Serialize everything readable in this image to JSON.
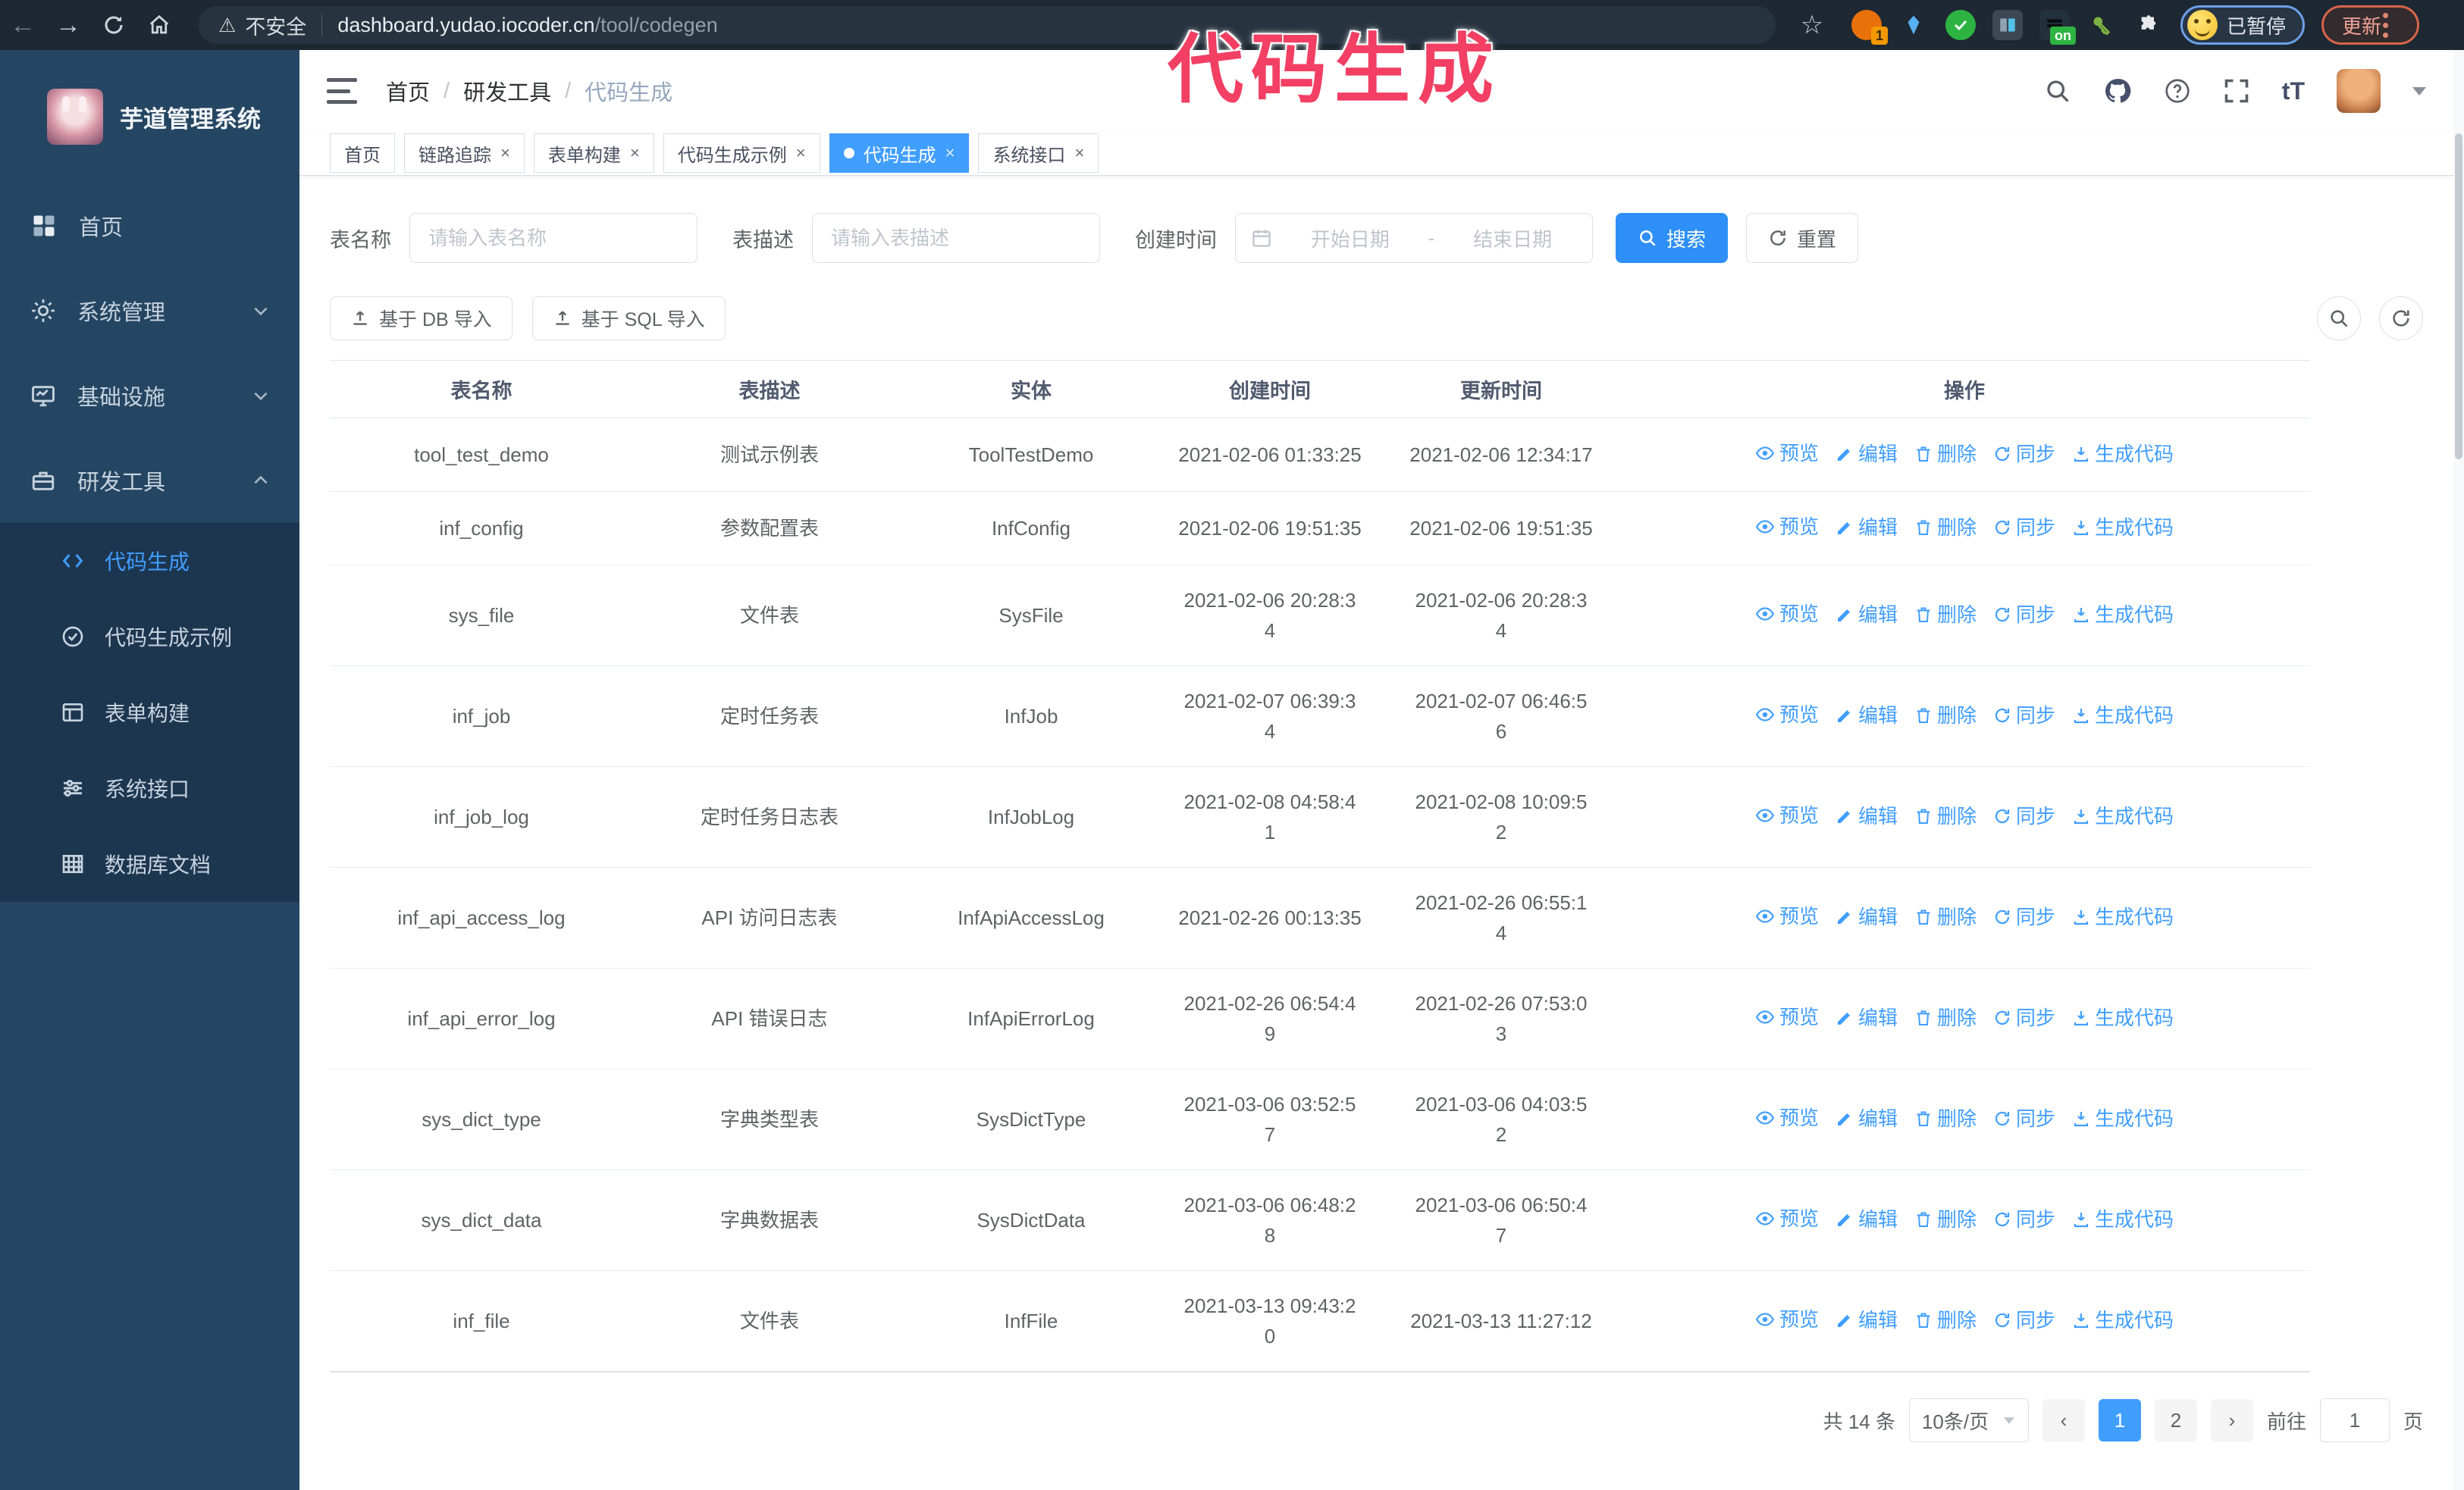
{
  "browser": {
    "security_label": "不安全",
    "url_host": "dashboard.yudao.iocoder.cn",
    "url_path": "/tool/codegen",
    "extension_badge": "1",
    "extension_on_badge": "on",
    "profile_status": "已暂停",
    "update_label": "更新"
  },
  "overlay": {
    "text": "代码生成"
  },
  "sidebar": {
    "title": "芋道管理系统",
    "items": [
      {
        "label": "首页"
      },
      {
        "label": "系统管理"
      },
      {
        "label": "基础设施"
      },
      {
        "label": "研发工具"
      }
    ],
    "sub_items": [
      {
        "label": "代码生成"
      },
      {
        "label": "代码生成示例"
      },
      {
        "label": "表单构建"
      },
      {
        "label": "系统接口"
      },
      {
        "label": "数据库文档"
      }
    ]
  },
  "header": {
    "breadcrumb": [
      "首页",
      "研发工具",
      "代码生成"
    ]
  },
  "tabs": [
    {
      "label": "首页"
    },
    {
      "label": "链路追踪"
    },
    {
      "label": "表单构建"
    },
    {
      "label": "代码生成示例"
    },
    {
      "label": "代码生成"
    },
    {
      "label": "系统接口"
    }
  ],
  "filters": {
    "table_name_label": "表名称",
    "table_name_placeholder": "请输入表名称",
    "table_desc_label": "表描述",
    "table_desc_placeholder": "请输入表描述",
    "create_time_label": "创建时间",
    "start_placeholder": "开始日期",
    "range_separator": "-",
    "end_placeholder": "结束日期",
    "search_label": "搜索",
    "reset_label": "重置"
  },
  "toolbar": {
    "import_db_label": "基于 DB 导入",
    "import_sql_label": "基于 SQL 导入"
  },
  "table": {
    "columns": [
      "表名称",
      "表描述",
      "实体",
      "创建时间",
      "更新时间",
      "操作"
    ],
    "actions": [
      "预览",
      "编辑",
      "删除",
      "同步",
      "生成代码"
    ],
    "action_icons": [
      "eye-icon",
      "edit-icon",
      "delete-icon",
      "sync-icon",
      "download-icon"
    ],
    "rows": [
      {
        "name": "tool_test_demo",
        "desc": "测试示例表",
        "entity": "ToolTestDemo",
        "created": "2021-02-06 01:33:25",
        "updated": "2021-02-06 12:34:17"
      },
      {
        "name": "inf_config",
        "desc": "参数配置表",
        "entity": "InfConfig",
        "created": "2021-02-06 19:51:35",
        "updated": "2021-02-06 19:51:35"
      },
      {
        "name": "sys_file",
        "desc": "文件表",
        "entity": "SysFile",
        "created": "2021-02-06 20:28:3\n4",
        "updated": "2021-02-06 20:28:3\n4"
      },
      {
        "name": "inf_job",
        "desc": "定时任务表",
        "entity": "InfJob",
        "created": "2021-02-07 06:39:3\n4",
        "updated": "2021-02-07 06:46:5\n6"
      },
      {
        "name": "inf_job_log",
        "desc": "定时任务日志表",
        "entity": "InfJobLog",
        "created": "2021-02-08 04:58:4\n1",
        "updated": "2021-02-08 10:09:5\n2"
      },
      {
        "name": "inf_api_access_log",
        "desc": "API 访问日志表",
        "entity": "InfApiAccessLog",
        "created": "2021-02-26 00:13:35",
        "updated": "2021-02-26 06:55:1\n4"
      },
      {
        "name": "inf_api_error_log",
        "desc": "API 错误日志",
        "entity": "InfApiErrorLog",
        "created": "2021-02-26 06:54:4\n9",
        "updated": "2021-02-26 07:53:0\n3"
      },
      {
        "name": "sys_dict_type",
        "desc": "字典类型表",
        "entity": "SysDictType",
        "created": "2021-03-06 03:52:5\n7",
        "updated": "2021-03-06 04:03:5\n2"
      },
      {
        "name": "sys_dict_data",
        "desc": "字典数据表",
        "entity": "SysDictData",
        "created": "2021-03-06 06:48:2\n8",
        "updated": "2021-03-06 06:50:4\n7"
      },
      {
        "name": "inf_file",
        "desc": "文件表",
        "entity": "InfFile",
        "created": "2021-03-13 09:43:2\n0",
        "updated": "2021-03-13 11:27:12"
      }
    ]
  },
  "pagination": {
    "total": "共 14 条",
    "page_size": "10条/页",
    "pages": [
      "1",
      "2"
    ],
    "active_page": "1",
    "goto_label": "前往",
    "goto_value": "1",
    "page_suffix": "页"
  },
  "colors": {
    "accent": "#409eff",
    "sidebar_bg": "#254663",
    "submenu_bg": "#1d3650",
    "overlay_pink": "#f23f63",
    "chrome_bg": "#1d2832"
  }
}
